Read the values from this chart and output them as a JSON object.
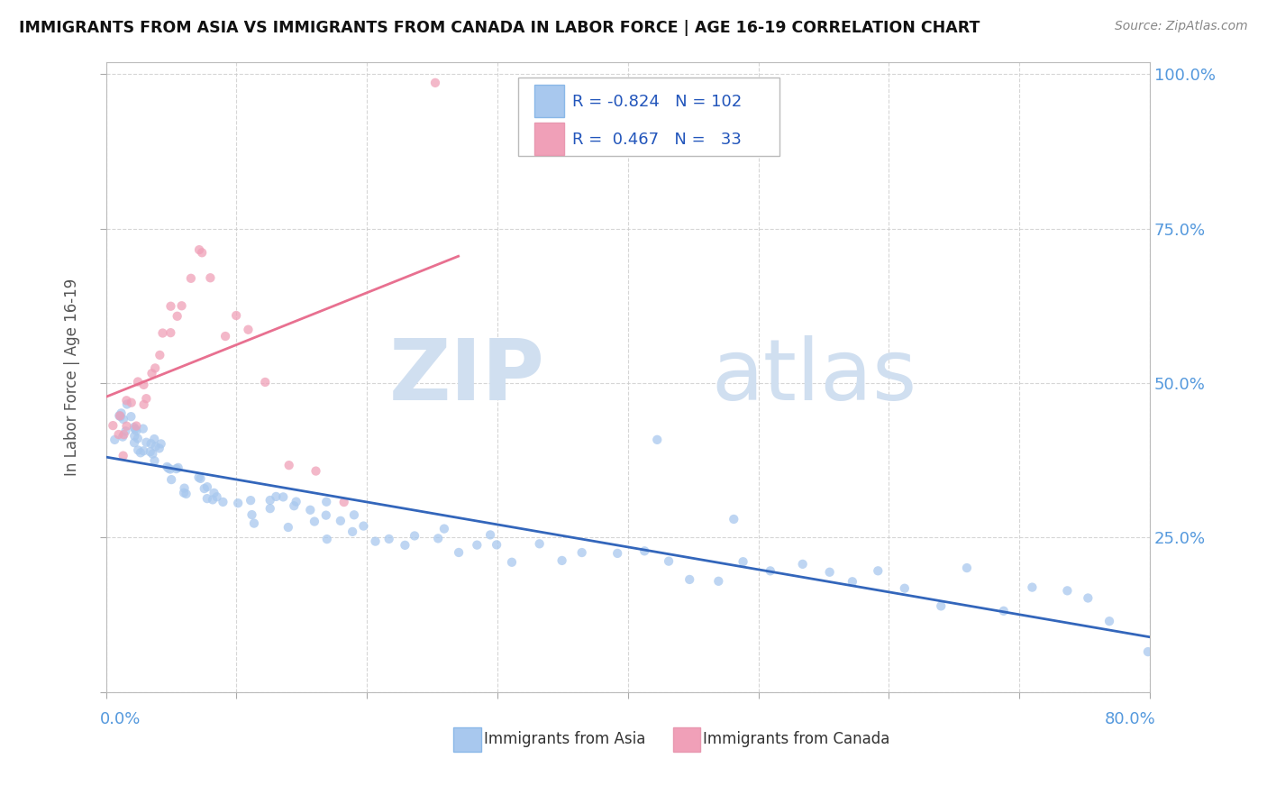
{
  "title": "IMMIGRANTS FROM ASIA VS IMMIGRANTS FROM CANADA IN LABOR FORCE | AGE 16-19 CORRELATION CHART",
  "source": "Source: ZipAtlas.com",
  "ylabel": "In Labor Force | Age 16-19",
  "watermark_zip": "ZIP",
  "watermark_atlas": "atlas",
  "legend_r_asia": "-0.824",
  "legend_n_asia": "102",
  "legend_r_canada": "0.467",
  "legend_n_canada": "33",
  "asia_color": "#a8c8ee",
  "canada_color": "#f0a0b8",
  "asia_line_color": "#3366bb",
  "canada_line_color": "#e87090",
  "background_color": "#ffffff",
  "grid_color": "#cccccc",
  "right_tick_color": "#5599dd",
  "title_color": "#111111",
  "source_color": "#888888",
  "ylabel_color": "#555555",
  "xlim": [
    0.0,
    0.8
  ],
  "ylim": [
    0.0,
    1.02
  ],
  "yticks": [
    0.0,
    0.25,
    0.5,
    0.75,
    1.0
  ],
  "ytick_labels_right": [
    "",
    "25.0%",
    "50.0%",
    "75.0%",
    "100.0%"
  ],
  "asia_x": [
    0.006,
    0.008,
    0.01,
    0.012,
    0.014,
    0.015,
    0.016,
    0.018,
    0.019,
    0.02,
    0.021,
    0.022,
    0.023,
    0.024,
    0.025,
    0.026,
    0.027,
    0.028,
    0.03,
    0.031,
    0.032,
    0.034,
    0.035,
    0.036,
    0.038,
    0.04,
    0.042,
    0.044,
    0.046,
    0.048,
    0.05,
    0.052,
    0.055,
    0.058,
    0.06,
    0.062,
    0.065,
    0.068,
    0.07,
    0.072,
    0.075,
    0.078,
    0.08,
    0.085,
    0.09,
    0.095,
    0.1,
    0.105,
    0.11,
    0.115,
    0.12,
    0.125,
    0.13,
    0.135,
    0.14,
    0.145,
    0.15,
    0.155,
    0.16,
    0.165,
    0.17,
    0.175,
    0.18,
    0.185,
    0.19,
    0.2,
    0.21,
    0.22,
    0.23,
    0.24,
    0.25,
    0.26,
    0.27,
    0.28,
    0.29,
    0.3,
    0.31,
    0.33,
    0.35,
    0.37,
    0.39,
    0.41,
    0.43,
    0.45,
    0.47,
    0.49,
    0.51,
    0.53,
    0.55,
    0.57,
    0.59,
    0.61,
    0.64,
    0.66,
    0.69,
    0.71,
    0.73,
    0.75,
    0.77,
    0.8,
    0.425,
    0.48
  ],
  "asia_y": [
    0.44,
    0.43,
    0.44,
    0.45,
    0.43,
    0.42,
    0.44,
    0.42,
    0.43,
    0.41,
    0.43,
    0.42,
    0.41,
    0.42,
    0.41,
    0.41,
    0.4,
    0.4,
    0.41,
    0.4,
    0.4,
    0.4,
    0.39,
    0.39,
    0.39,
    0.38,
    0.38,
    0.37,
    0.37,
    0.37,
    0.37,
    0.36,
    0.36,
    0.35,
    0.36,
    0.35,
    0.35,
    0.34,
    0.34,
    0.34,
    0.34,
    0.33,
    0.33,
    0.33,
    0.32,
    0.32,
    0.31,
    0.31,
    0.31,
    0.3,
    0.3,
    0.3,
    0.3,
    0.29,
    0.29,
    0.29,
    0.29,
    0.28,
    0.29,
    0.28,
    0.28,
    0.27,
    0.27,
    0.27,
    0.27,
    0.26,
    0.26,
    0.26,
    0.25,
    0.25,
    0.25,
    0.25,
    0.24,
    0.24,
    0.24,
    0.23,
    0.23,
    0.23,
    0.22,
    0.22,
    0.22,
    0.21,
    0.21,
    0.21,
    0.2,
    0.2,
    0.2,
    0.19,
    0.19,
    0.19,
    0.18,
    0.18,
    0.17,
    0.17,
    0.16,
    0.16,
    0.15,
    0.15,
    0.14,
    0.05,
    0.43,
    0.3
  ],
  "canada_x": [
    0.006,
    0.008,
    0.01,
    0.012,
    0.014,
    0.016,
    0.018,
    0.02,
    0.022,
    0.025,
    0.028,
    0.03,
    0.032,
    0.035,
    0.038,
    0.04,
    0.043,
    0.046,
    0.05,
    0.055,
    0.06,
    0.065,
    0.07,
    0.075,
    0.08,
    0.09,
    0.1,
    0.11,
    0.12,
    0.14,
    0.16,
    0.18,
    0.25
  ],
  "canada_y": [
    0.44,
    0.43,
    0.44,
    0.42,
    0.43,
    0.44,
    0.43,
    0.45,
    0.46,
    0.47,
    0.48,
    0.5,
    0.51,
    0.52,
    0.53,
    0.55,
    0.57,
    0.58,
    0.6,
    0.62,
    0.65,
    0.67,
    0.7,
    0.68,
    0.65,
    0.62,
    0.6,
    0.55,
    0.5,
    0.38,
    0.35,
    0.32,
    0.97
  ]
}
